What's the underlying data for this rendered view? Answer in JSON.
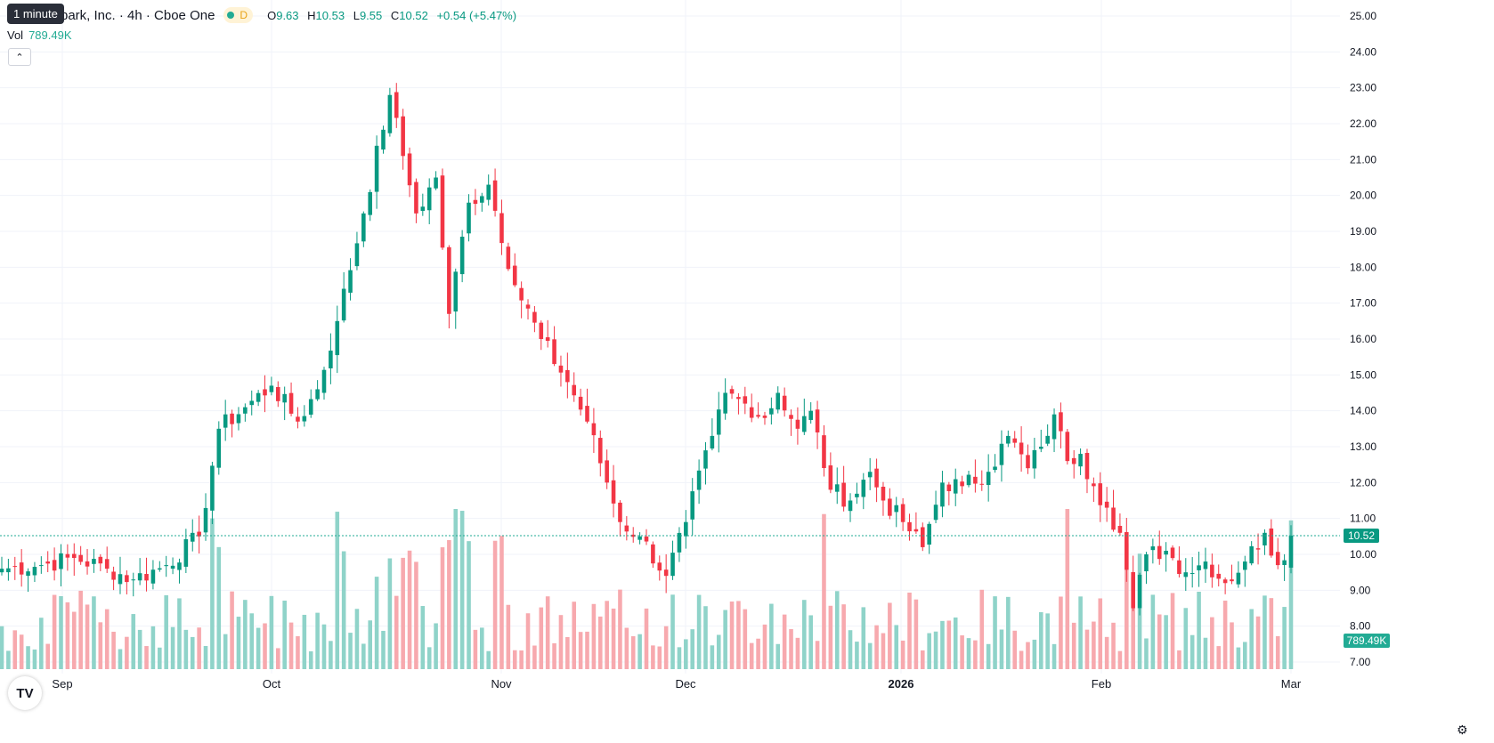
{
  "header": {
    "tooltip": "1 minute",
    "symbol_title": "park, Inc. · 4h · Cboe One",
    "market_status": "D",
    "ohlc": [
      {
        "k": "O",
        "v": "9.63"
      },
      {
        "k": "H",
        "v": "10.53"
      },
      {
        "k": "L",
        "v": "9.55"
      },
      {
        "k": "C",
        "v": "10.52"
      },
      {
        "k": "",
        "v": "+0.54 (+5.47%)"
      }
    ],
    "volume_label": "Vol",
    "volume_value": "789.49K"
  },
  "icons": {
    "collapse": "chevron-up-icon",
    "logo": "tradingview-logo",
    "settings": "gear-icon"
  },
  "colors": {
    "up": "#089981",
    "down": "#f23645",
    "vol_up": "#8fd3c9",
    "vol_down": "#f7a9ae",
    "grid": "#f0f3fa",
    "price_line": "#22ab94"
  },
  "chart_data": {
    "type": "candlestick",
    "interval": "4h",
    "price_axis": {
      "ticks": [
        "25.00",
        "24.00",
        "23.00",
        "22.00",
        "21.00",
        "20.00",
        "19.00",
        "18.00",
        "17.00",
        "16.00",
        "15.00",
        "14.00",
        "13.00",
        "12.00",
        "11.00",
        "10.00",
        "9.00",
        "8.00",
        "7.00"
      ],
      "range": [
        6.8,
        25.2
      ]
    },
    "time_axis": {
      "labels": [
        {
          "text": "Sep",
          "bold": false
        },
        {
          "text": "Oct",
          "bold": false
        },
        {
          "text": "Nov",
          "bold": false
        },
        {
          "text": "Dec",
          "bold": false
        },
        {
          "text": "2026",
          "bold": true
        },
        {
          "text": "Feb",
          "bold": false
        },
        {
          "text": "Mar",
          "bold": false
        }
      ]
    },
    "last_price": {
      "value": 10.52,
      "label": "10.52"
    },
    "last_volume": {
      "label": "789.49K"
    },
    "close_anchors": [
      [
        0,
        9.6
      ],
      [
        6,
        9.7
      ],
      [
        11,
        9.9
      ],
      [
        16,
        9.6
      ],
      [
        20,
        9.3
      ],
      [
        25,
        9.7
      ],
      [
        30,
        10.5
      ],
      [
        33,
        13.5
      ],
      [
        37,
        14.1
      ],
      [
        41,
        14.7
      ],
      [
        45,
        13.7
      ],
      [
        48,
        14.6
      ],
      [
        51,
        16.5
      ],
      [
        55,
        19.5
      ],
      [
        59,
        22.8
      ],
      [
        61,
        21.1
      ],
      [
        63,
        19.5
      ],
      [
        66,
        20.5
      ],
      [
        68,
        16.7
      ],
      [
        71,
        19.8
      ],
      [
        74,
        20.3
      ],
      [
        78,
        17.5
      ],
      [
        82,
        16.0
      ],
      [
        86,
        14.8
      ],
      [
        89,
        13.7
      ],
      [
        92,
        12.0
      ],
      [
        94,
        10.9
      ],
      [
        97,
        10.5
      ],
      [
        101,
        9.4
      ],
      [
        104,
        10.9
      ],
      [
        108,
        13.3
      ],
      [
        110,
        14.5
      ],
      [
        113,
        14.2
      ],
      [
        116,
        13.8
      ],
      [
        118,
        14.5
      ],
      [
        121,
        13.5
      ],
      [
        123,
        14.0
      ],
      [
        126,
        11.8
      ],
      [
        129,
        11.5
      ],
      [
        132,
        12.3
      ],
      [
        134,
        11.5
      ],
      [
        137,
        10.9
      ],
      [
        140,
        10.2
      ],
      [
        143,
        12.0
      ],
      [
        146,
        11.9
      ],
      [
        150,
        12.3
      ],
      [
        153,
        13.3
      ],
      [
        156,
        12.4
      ],
      [
        158,
        13.0
      ],
      [
        160,
        13.9
      ],
      [
        162,
        12.6
      ],
      [
        164,
        12.8
      ],
      [
        166,
        11.9
      ],
      [
        168,
        11.3
      ],
      [
        170,
        10.6
      ],
      [
        172,
        8.5
      ],
      [
        174,
        10.0
      ],
      [
        177,
        10.1
      ],
      [
        180,
        9.5
      ],
      [
        183,
        9.8
      ],
      [
        186,
        9.2
      ],
      [
        189,
        9.8
      ],
      [
        192,
        10.6
      ],
      [
        194,
        9.7
      ],
      [
        196,
        10.52
      ]
    ],
    "series": [
      {
        "name": "Price",
        "kind": "ohlc"
      },
      {
        "name": "Vol",
        "kind": "volume"
      }
    ]
  }
}
